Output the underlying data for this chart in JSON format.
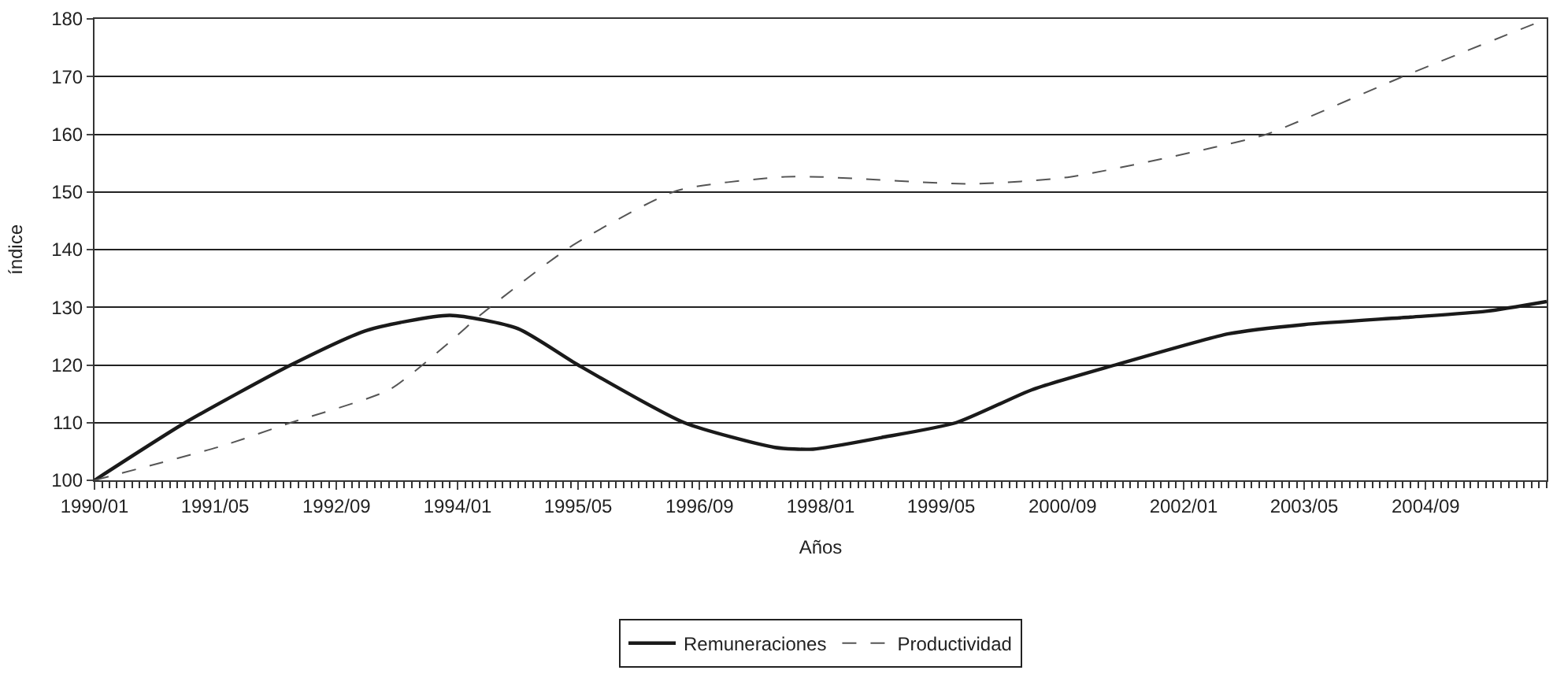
{
  "chart_data": {
    "type": "line",
    "xlabel": "Años",
    "ylabel": "índice",
    "xlim": [
      "1990-01",
      "2006-01"
    ],
    "xticks": [
      {
        "value": "1990-01",
        "label": "1990/01"
      },
      {
        "value": "1991-05",
        "label": "1991/05"
      },
      {
        "value": "1992-09",
        "label": "1992/09"
      },
      {
        "value": "1994-01",
        "label": "1994/01"
      },
      {
        "value": "1995-05",
        "label": "1995/05"
      },
      {
        "value": "1996-09",
        "label": "1996/09"
      },
      {
        "value": "1998-01",
        "label": "1998/01"
      },
      {
        "value": "1999-05",
        "label": "1999/05"
      },
      {
        "value": "2000-09",
        "label": "2000/09"
      },
      {
        "value": "2002-01",
        "label": "2002/01"
      },
      {
        "value": "2003-05",
        "label": "2003/05"
      },
      {
        "value": "2004-09",
        "label": "2004/09"
      }
    ],
    "ylim": [
      100,
      180
    ],
    "yticks": [
      100,
      110,
      120,
      130,
      140,
      150,
      160,
      170,
      180
    ],
    "grid": "y",
    "legend": "bottom",
    "marker": "none",
    "series": [
      {
        "name": "Remuneraciones",
        "color": "#1a1a1a",
        "line_style": "solid",
        "x": [
          "1990-01",
          "1991-01",
          "1992-03",
          "1993-01",
          "1993-12",
          "1994-09",
          "1995-05",
          "1996-07",
          "1997-07",
          "1997-12",
          "1998-09",
          "1999-07",
          "2000-05",
          "2001-04",
          "2002-07",
          "2003-05",
          "2004-07",
          "2005-05",
          "2006-01"
        ],
        "values": [
          100,
          110,
          120,
          126,
          128.6,
          126.3,
          120,
          110,
          105.7,
          105.4,
          107.4,
          110,
          115.7,
          120,
          125.4,
          127,
          128.3,
          129.3,
          131
        ]
      },
      {
        "name": "Productividad",
        "color": "#555555",
        "line_style": "dashed",
        "x": [
          "1990-01",
          "1991-06",
          "1992-03",
          "1993-04",
          "1993-12",
          "1994-04",
          "1995-04",
          "1996-06",
          "1997-08",
          "1998-01",
          "1999-09",
          "2000-10",
          "2002-05",
          "2002-12",
          "2004-06",
          "2006-01"
        ],
        "values": [
          100,
          106,
          110,
          115.7,
          124,
          128.6,
          140.5,
          150.2,
          152.6,
          152.6,
          151.4,
          152.6,
          157.7,
          160,
          170,
          180
        ]
      }
    ]
  }
}
